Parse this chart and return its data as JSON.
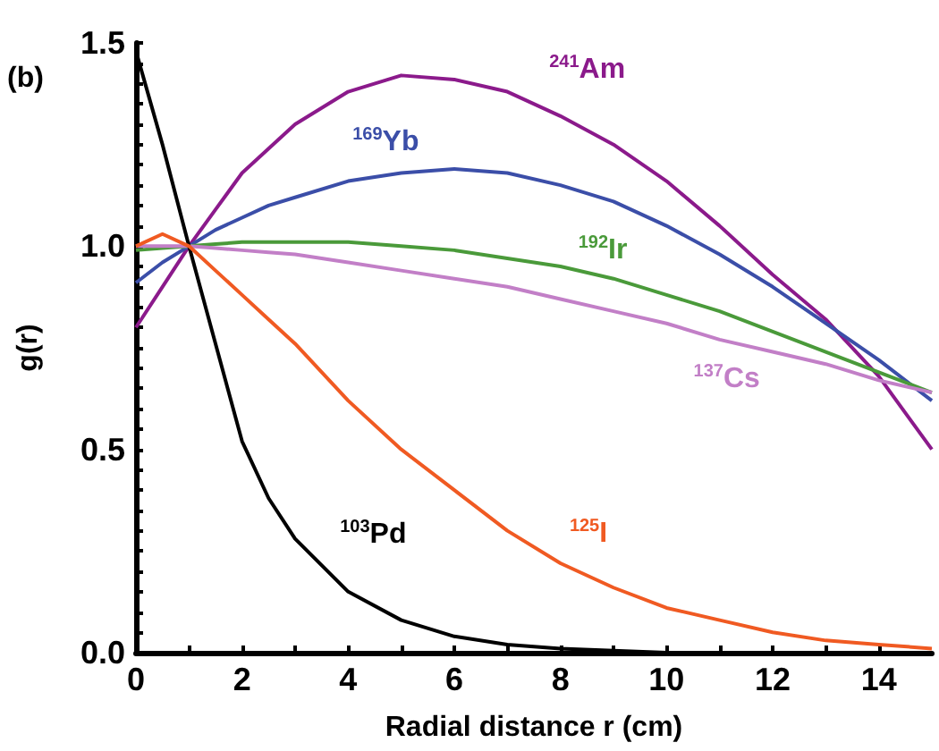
{
  "chart_data": {
    "type": "line",
    "xlabel": "Radial distance r (cm)",
    "ylabel": "g(r)",
    "xlim": [
      0,
      15
    ],
    "xticks": [
      0,
      2,
      4,
      6,
      8,
      10,
      12,
      14
    ],
    "ylim": [
      0,
      1.5
    ],
    "yticks": [
      {
        "value": 0,
        "label": "0.0"
      },
      {
        "value": 0.5,
        "label": "0.5"
      },
      {
        "value": 1,
        "label": "1.0"
      },
      {
        "value": 1.5,
        "label": "1.5"
      }
    ],
    "grid": false,
    "marker": "none",
    "line_style": "solid",
    "x": [
      0,
      0.5,
      1,
      1.5,
      2,
      2.5,
      3,
      4,
      5,
      6,
      7,
      8,
      9,
      10,
      11,
      12,
      13,
      14,
      15
    ],
    "series": [
      {
        "name": "$^{241}$Am",
        "color": "#8b1a8b",
        "values": [
          0.8,
          0.9,
          1.0,
          1.09,
          1.18,
          1.24,
          1.3,
          1.38,
          1.42,
          1.41,
          1.38,
          1.32,
          1.25,
          1.16,
          1.05,
          0.93,
          0.82,
          0.68,
          0.5
        ]
      },
      {
        "name": "$^{169}$Yb",
        "color": "#3b4ea8",
        "values": [
          0.91,
          0.96,
          1.0,
          1.04,
          1.07,
          1.1,
          1.12,
          1.16,
          1.18,
          1.19,
          1.18,
          1.15,
          1.11,
          1.05,
          0.98,
          0.9,
          0.81,
          0.72,
          0.62
        ]
      },
      {
        "name": "$^{192}$Ir",
        "color": "#4a9a3a",
        "values": [
          0.99,
          0.995,
          1.0,
          1.005,
          1.01,
          1.01,
          1.01,
          1.01,
          1.0,
          0.99,
          0.97,
          0.95,
          0.92,
          0.88,
          0.84,
          0.79,
          0.74,
          0.69,
          0.64
        ]
      },
      {
        "name": "$^{137}$Cs",
        "color": "#c27fc7",
        "values": [
          1.0,
          1.0,
          1.0,
          0.995,
          0.99,
          0.985,
          0.98,
          0.96,
          0.94,
          0.92,
          0.9,
          0.87,
          0.84,
          0.81,
          0.77,
          0.74,
          0.71,
          0.67,
          0.64
        ]
      },
      {
        "name": "$^{103}$Pd",
        "color": "#000000",
        "values": [
          1.48,
          1.25,
          1.0,
          0.76,
          0.52,
          0.38,
          0.28,
          0.15,
          0.08,
          0.04,
          0.02,
          0.01,
          0.005,
          0.0,
          0.0,
          0.0,
          0.0,
          0.0,
          0.0
        ]
      },
      {
        "name": "$^{125}$I",
        "color": "#f05a22",
        "values": [
          1.0,
          1.03,
          1.0,
          0.94,
          0.88,
          0.82,
          0.76,
          0.62,
          0.5,
          0.4,
          0.3,
          0.22,
          0.16,
          0.11,
          0.08,
          0.05,
          0.03,
          0.02,
          0.01
        ]
      }
    ],
    "annotations": [
      "(b)"
    ]
  }
}
